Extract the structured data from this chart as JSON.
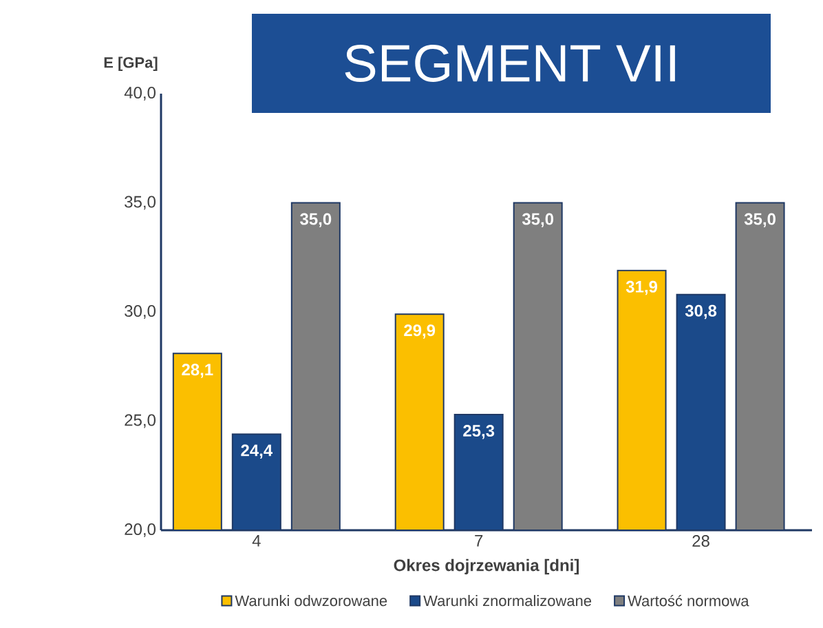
{
  "chart_data": {
    "type": "bar",
    "title": "SEGMENT VII",
    "xlabel": "Okres dojrzewania [dni]",
    "ylabel": "E [GPa]",
    "categories": [
      "4",
      "7",
      "28"
    ],
    "series": [
      {
        "name": "Warunki odwzorowane",
        "color": "#fbbf00",
        "values": [
          28.1,
          29.9,
          31.9
        ],
        "value_labels": [
          "28,1",
          "29,9",
          "31,9"
        ]
      },
      {
        "name": "Warunki znormalizowane",
        "color": "#1b4a8a",
        "values": [
          24.4,
          25.3,
          30.8
        ],
        "value_labels": [
          "24,4",
          "25,3",
          "30,8"
        ]
      },
      {
        "name": "Wartość normowa",
        "color": "#7f7f7f",
        "values": [
          35.0,
          35.0,
          35.0
        ],
        "value_labels": [
          "35,0",
          "35,0",
          "35,0"
        ]
      }
    ],
    "ylim": [
      20,
      40
    ],
    "yticks": [
      {
        "value": 20,
        "label": "20,0"
      },
      {
        "value": 25,
        "label": "25,0"
      },
      {
        "value": 30,
        "label": "30,0"
      },
      {
        "value": 35,
        "label": "35,0"
      },
      {
        "value": 40,
        "label": "40,0"
      }
    ],
    "grid": false,
    "legend": "bottom"
  }
}
